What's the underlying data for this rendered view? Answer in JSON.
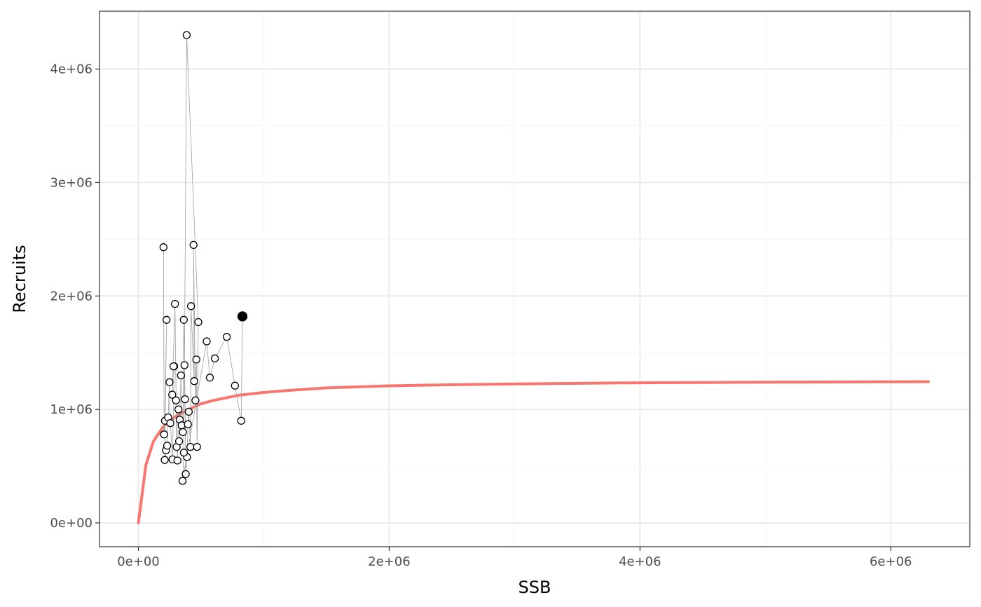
{
  "chart_data": {
    "type": "scatter",
    "xlabel": "SSB",
    "ylabel": "Recruits",
    "xlim": [
      -310000,
      6630000
    ],
    "ylim": [
      -210000,
      4510000
    ],
    "grid": true,
    "legend": "none",
    "x_ticks": [
      0,
      2000000,
      4000000,
      6000000
    ],
    "x_tick_labels": [
      "0e+00",
      "2e+06",
      "4e+06",
      "6e+06"
    ],
    "y_ticks": [
      0,
      1000000,
      2000000,
      3000000,
      4000000
    ],
    "y_tick_labels": [
      "0e+00",
      "1e+06",
      "2e+06",
      "3e+06",
      "4e+06"
    ],
    "colors": {
      "fit_line": "#f8766d",
      "path": "#9e9e9e",
      "point_fill": "#ffffff",
      "point_stroke": "#000000",
      "last_point": "#000000",
      "grid_major": "#ebebeb",
      "grid_minor": "#f5f5f5",
      "panel_border": "#333333"
    },
    "series": [
      {
        "type": "line",
        "role": "stock-recruit-fit",
        "x": [
          0,
          60000,
          120000,
          200000,
          300000,
          400000,
          500000,
          600000,
          800000,
          1000000,
          1200000,
          1500000,
          2000000,
          2500000,
          3000000,
          4000000,
          5000000,
          6300000
        ],
        "y": [
          0,
          510000,
          720000,
          850000,
          940000,
          1000000,
          1050000,
          1080000,
          1125000,
          1150000,
          1168000,
          1190000,
          1208000,
          1218000,
          1225000,
          1235000,
          1240000,
          1245000
        ]
      },
      {
        "type": "scatter-path",
        "role": "observations",
        "x": [
          200000,
          205000,
          212000,
          225000,
          210000,
          220000,
          230000,
          237000,
          248000,
          255000,
          272000,
          285000,
          280000,
          270000,
          292000,
          305000,
          300000,
          312000,
          320000,
          330000,
          325000,
          340000,
          345000,
          355000,
          362000,
          368000,
          372000,
          378000,
          388000,
          395000,
          402000,
          415000,
          420000,
          445000,
          440000,
          455000,
          462000,
          468000,
          478000,
          385000,
          363000,
          352000,
          545000,
          570000,
          610000,
          705000,
          770000,
          820000,
          830000
        ],
        "y": [
          2430000,
          780000,
          900000,
          1790000,
          555000,
          640000,
          680000,
          930000,
          1240000,
          880000,
          560000,
          1380000,
          1380000,
          1130000,
          1930000,
          670000,
          1080000,
          550000,
          1000000,
          910000,
          720000,
          1300000,
          860000,
          800000,
          1790000,
          1390000,
          1090000,
          430000,
          580000,
          870000,
          980000,
          670000,
          1910000,
          1250000,
          2450000,
          1080000,
          1440000,
          670000,
          1770000,
          4300000,
          620000,
          370000,
          1600000,
          1280000,
          1450000,
          1640000,
          1210000,
          900000,
          1820000
        ]
      }
    ]
  }
}
